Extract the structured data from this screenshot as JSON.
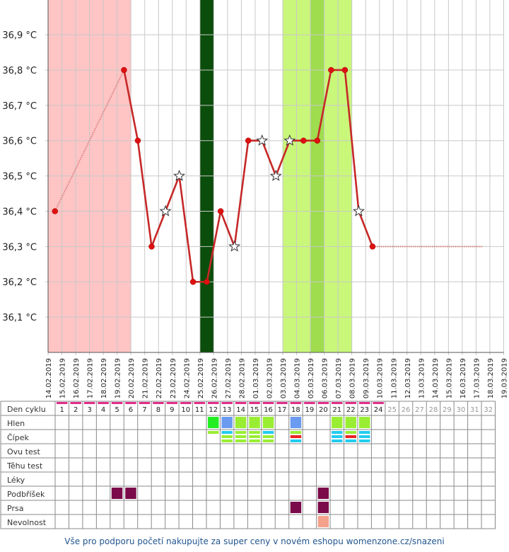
{
  "chart_data": {
    "type": "line",
    "y_unit": "°C",
    "ylim": [
      36.0,
      37.0
    ],
    "y_ticks": [
      36.1,
      36.2,
      36.3,
      36.4,
      36.5,
      36.6,
      36.7,
      36.8,
      36.9
    ],
    "y_tick_labels": [
      "36,1 °C",
      "36,2 °C",
      "36,3 °C",
      "36,4 °C",
      "36,5 °C",
      "36,6 °C",
      "36,7 °C",
      "36,8 °C",
      "36,9 °C"
    ],
    "x_labels": [
      "14.02.2019",
      "15.02.2019",
      "16.02.2019",
      "17.02.2019",
      "18.02.2019",
      "19.02.2019",
      "20.02.2019",
      "21.02.2019",
      "22.02.2019",
      "23.02.2019",
      "24.02.2019",
      "25.02.2019",
      "26.02.2019",
      "27.02.2019",
      "28.02.2019",
      "01.03.2019",
      "02.03.2019",
      "03.03.2019",
      "04.03.2019",
      "05.03.2019",
      "06.03.2019",
      "07.03.2019",
      "08.03.2019",
      "09.03.2019",
      "10.03.2019",
      "11.03.2019",
      "12.03.2019",
      "13.03.2019",
      "14.03.2019",
      "15.03.2019",
      "16.03.2019",
      "17.03.2019",
      "18.03.2019",
      "19.03.2019"
    ],
    "series": [
      {
        "points": [
          {
            "day": 1,
            "value": 36.4,
            "marker": "dot"
          },
          {
            "day": 6,
            "value": 36.8,
            "marker": "dot"
          },
          {
            "day": 7,
            "value": 36.6,
            "marker": "dot"
          },
          {
            "day": 8,
            "value": 36.3,
            "marker": "dot"
          },
          {
            "day": 9,
            "value": 36.4,
            "marker": "star"
          },
          {
            "day": 10,
            "value": 36.5,
            "marker": "star"
          },
          {
            "day": 11,
            "value": 36.2,
            "marker": "dot"
          },
          {
            "day": 12,
            "value": 36.2,
            "marker": "dot"
          },
          {
            "day": 13,
            "value": 36.4,
            "marker": "dot"
          },
          {
            "day": 14,
            "value": 36.3,
            "marker": "star"
          },
          {
            "day": 15,
            "value": 36.6,
            "marker": "dot"
          },
          {
            "day": 16,
            "value": 36.6,
            "marker": "star"
          },
          {
            "day": 17,
            "value": 36.5,
            "marker": "star"
          },
          {
            "day": 18,
            "value": 36.6,
            "marker": "star"
          },
          {
            "day": 19,
            "value": 36.6,
            "marker": "dot"
          },
          {
            "day": 20,
            "value": 36.6,
            "marker": "dot"
          },
          {
            "day": 21,
            "value": 36.8,
            "marker": "dot"
          },
          {
            "day": 22,
            "value": 36.8,
            "marker": "dot"
          },
          {
            "day": 23,
            "value": 36.4,
            "marker": "star"
          },
          {
            "day": 24,
            "value": 36.3,
            "marker": "dot"
          }
        ],
        "dotted_from_day_1_to_6": true,
        "projection": {
          "from_day": 24,
          "to_day": 32,
          "value": 36.3
        }
      }
    ],
    "bands": [
      {
        "kind": "menstruation",
        "from_day": 1,
        "to_day": 6,
        "color": "#ffc4c4"
      },
      {
        "kind": "ovulation",
        "from_day": 12,
        "to_day": 12,
        "color": "#0b4d0b"
      },
      {
        "kind": "fertile",
        "from_day": 18,
        "to_day": 22,
        "color": "#c9f77a"
      },
      {
        "kind": "fertile-peak",
        "from_day": 20,
        "to_day": 20,
        "color": "#9fdc4e"
      }
    ],
    "colors": {
      "line": "#c62828",
      "line_light": "#d98080",
      "dot": "#dd1111",
      "grid": "#c8c8c8"
    }
  },
  "table": {
    "row_labels": [
      "Den cyklu",
      "Hlen",
      "Čípek",
      "Ovu test",
      "Těhu test",
      "Léky",
      "Podbříšek",
      "Prsa",
      "Nevolnost"
    ],
    "cycle_days": [
      "1",
      "2",
      "3",
      "4",
      "5",
      "6",
      "7",
      "8",
      "9",
      "10",
      "11",
      "12",
      "13",
      "14",
      "15",
      "16",
      "17",
      "18",
      "19",
      "20",
      "21",
      "22",
      "23",
      "24",
      "25",
      "26",
      "27",
      "28",
      "29",
      "30",
      "31",
      "32"
    ],
    "recorded_days_last": 24,
    "hlen": [
      {
        "day": 12,
        "color": "#22ee22"
      },
      {
        "day": 13,
        "color": "#6b9bf0"
      },
      {
        "day": 14,
        "color": "#99ee33"
      },
      {
        "day": 15,
        "color": "#99ee33"
      },
      {
        "day": 16,
        "color": "#99ee33"
      },
      {
        "day": 18,
        "color": "#6b9bf0"
      },
      {
        "day": 21,
        "color": "#99ee33"
      },
      {
        "day": 22,
        "color": "#99ee33"
      },
      {
        "day": 23,
        "color": "#99ee33"
      }
    ],
    "cipek": [
      {
        "day": 12,
        "bars": [
          "#99ee33"
        ]
      },
      {
        "day": 13,
        "bars": [
          "#22ccee",
          "#99ee33",
          "#99ee33"
        ]
      },
      {
        "day": 14,
        "bars": [
          "#99ee33",
          "#99ee33",
          "#99ee33"
        ]
      },
      {
        "day": 15,
        "bars": [
          "#99ee33",
          "#99ee33",
          "#99ee33"
        ]
      },
      {
        "day": 16,
        "bars": [
          "#22ccee",
          "#99ee33",
          "#99ee33"
        ]
      },
      {
        "day": 18,
        "bars": [
          "#99ee33",
          "#ee2222",
          "#22ccee"
        ]
      },
      {
        "day": 21,
        "bars": [
          "#22ccee",
          "#22ccee",
          "#22ccee"
        ]
      },
      {
        "day": 22,
        "bars": [
          "#99ee33",
          "#ee2222",
          "#22ccee"
        ]
      },
      {
        "day": 23,
        "bars": [
          "#22ccee",
          "#22ccee",
          "#22ccee"
        ]
      }
    ],
    "podbrisek": [
      {
        "day": 5,
        "color": "#7a0a4a"
      },
      {
        "day": 6,
        "color": "#7a0a4a"
      },
      {
        "day": 20,
        "color": "#7a0a4a"
      }
    ],
    "prsa": [
      {
        "day": 18,
        "color": "#7a0a4a"
      },
      {
        "day": 20,
        "color": "#7a0a4a"
      }
    ],
    "nevolnost": [
      {
        "day": 20,
        "color": "#f4a28c"
      }
    ]
  },
  "footer": {
    "text": "Vše pro podporu početí nakupujte za super ceny v novém eshopu womenzone.cz/snazeni"
  }
}
